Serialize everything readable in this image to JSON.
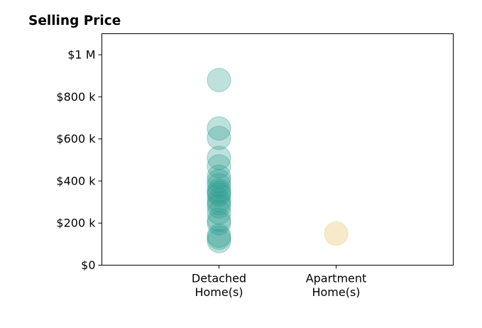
{
  "chart_data": {
    "type": "scatter",
    "title": "Selling Price",
    "xlabel": "",
    "ylabel": "",
    "categories": [
      [
        "Detached",
        "Home(s)"
      ],
      [
        "Apartment",
        "Home(s)"
      ]
    ],
    "ylim": [
      0,
      1100000
    ],
    "yticks": [
      {
        "value": 0,
        "label": "$0"
      },
      {
        "value": 200000,
        "label": "$200 k"
      },
      {
        "value": 400000,
        "label": "$400 k"
      },
      {
        "value": 600000,
        "label": "$600 k"
      },
      {
        "value": 800000,
        "label": "$800 k"
      },
      {
        "value": 1000000,
        "label": "$1 M"
      }
    ],
    "series": [
      {
        "category_index": 0,
        "color": "#2a9d8f",
        "values": [
          880000,
          650000,
          605000,
          510000,
          470000,
          420000,
          400000,
          380000,
          355000,
          345000,
          335000,
          310000,
          295000,
          280000,
          250000,
          215000,
          200000,
          140000,
          130000,
          115000
        ]
      },
      {
        "category_index": 1,
        "color": "#e9c46a",
        "values": [
          150000
        ]
      }
    ],
    "grid": false,
    "legend": "none"
  }
}
